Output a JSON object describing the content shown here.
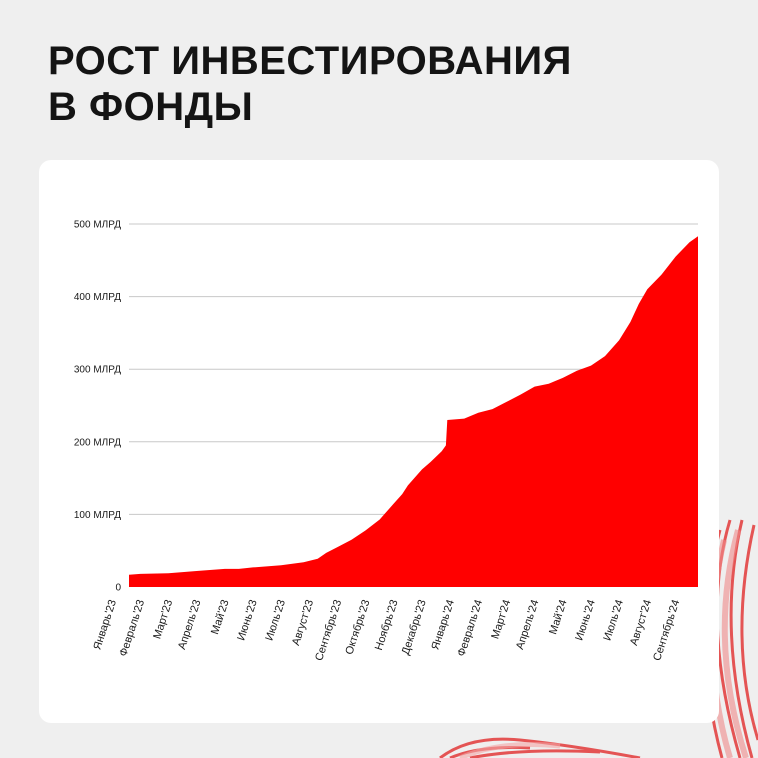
{
  "title": {
    "line1": "РОСТ ИНВЕСТИРОВАНИЯ",
    "line2": "В ФОНДЫ"
  },
  "colors": {
    "background": "#efefef",
    "card": "#ffffff",
    "fill": "#ff0000",
    "grid": "#c8c8c8",
    "text": "#141414"
  },
  "chart_data": {
    "type": "area",
    "title": "",
    "xlabel": "",
    "ylabel": "",
    "grid": true,
    "legend": "none",
    "ylim": [
      0,
      500
    ],
    "y_ticks": [
      {
        "value": 0,
        "label": "0"
      },
      {
        "value": 100,
        "label": "100 МЛРД"
      },
      {
        "value": 200,
        "label": "200 МЛРД"
      },
      {
        "value": 300,
        "label": "300 МЛРД"
      },
      {
        "value": 400,
        "label": "400 МЛРД"
      },
      {
        "value": 500,
        "label": "500 МЛРД"
      }
    ],
    "categories": [
      "Январь'23",
      "Февраль'23",
      "Март'23",
      "Апрель'23",
      "Май'23",
      "Июнь'23",
      "Июль'23",
      "Август'23",
      "Сентябрь'23",
      "Октябрь'23",
      "Ноябрь'23",
      "Декабрь'23",
      "Январь'24",
      "Февраль'24",
      "Март'24",
      "Апрель'24",
      "Май'24",
      "Июнь'24",
      "Июль'24",
      "Август'24",
      "Сентябрь'24"
    ],
    "x_range": [
      0.6,
      20.8
    ],
    "series": [
      {
        "points": [
          [
            0.6,
            17
          ],
          [
            1,
            18
          ],
          [
            2,
            19
          ],
          [
            3,
            22
          ],
          [
            4,
            25
          ],
          [
            4.5,
            25
          ],
          [
            5,
            27
          ],
          [
            6,
            30
          ],
          [
            6.8,
            34
          ],
          [
            7.3,
            39
          ],
          [
            7.6,
            47
          ],
          [
            8,
            55
          ],
          [
            8.5,
            65
          ],
          [
            9,
            78
          ],
          [
            9.5,
            93
          ],
          [
            10,
            115
          ],
          [
            10.3,
            128
          ],
          [
            10.5,
            140
          ],
          [
            11,
            162
          ],
          [
            11.3,
            172
          ],
          [
            11.7,
            187
          ],
          [
            11.85,
            195
          ],
          [
            11.9,
            230
          ],
          [
            12.5,
            232
          ],
          [
            13,
            240
          ],
          [
            13.5,
            245
          ],
          [
            14,
            255
          ],
          [
            14.5,
            265
          ],
          [
            15,
            276
          ],
          [
            15.5,
            280
          ],
          [
            16,
            288
          ],
          [
            16.5,
            298
          ],
          [
            17,
            305
          ],
          [
            17.5,
            318
          ],
          [
            18,
            340
          ],
          [
            18.4,
            365
          ],
          [
            18.7,
            390
          ],
          [
            19,
            410
          ],
          [
            19.5,
            430
          ],
          [
            20,
            455
          ],
          [
            20.5,
            475
          ],
          [
            20.8,
            483
          ]
        ]
      }
    ]
  }
}
